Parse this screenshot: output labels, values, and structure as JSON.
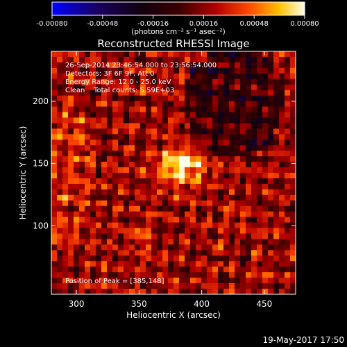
{
  "colorbar": {
    "ticks": [
      "-0.00080",
      "-0.00048",
      "-0.00016",
      "0.00016",
      "0.00048",
      "0.00080"
    ],
    "units": "(photons cm⁻² s⁻¹ asec⁻²)"
  },
  "chart_data": {
    "type": "heatmap",
    "title": "Reconstructed RHESSI Image",
    "xlabel": "Heliocentric X (arcsec)",
    "ylabel": "Heliocentric Y (arcsec)",
    "xlim": [
      280,
      475
    ],
    "ylim": [
      45,
      240
    ],
    "x_ticks": [
      "300",
      "350",
      "400",
      "450"
    ],
    "x_tick_values": [
      300,
      350,
      400,
      450
    ],
    "y_ticks": [
      "100",
      "150",
      "200"
    ],
    "y_tick_values": [
      100,
      150,
      200
    ],
    "colorbar_range": [
      -0.0008,
      0.0008
    ],
    "colormap": "red-temperature (blue-black-red-yellow-white)",
    "peak": [
      385,
      148
    ],
    "annotations": [
      "26-Sep-2014 23:46:54.000 to 23:56:54.000",
      "Detectors: 3F 6F 9F, Att 0",
      "Energy Range: 12.0 - 25.0 keV",
      "Clean    Total counts: 5.59E+03"
    ],
    "peak_label": "Position of Peak = [385,148]",
    "footer": "19-May-2017 17:50"
  }
}
